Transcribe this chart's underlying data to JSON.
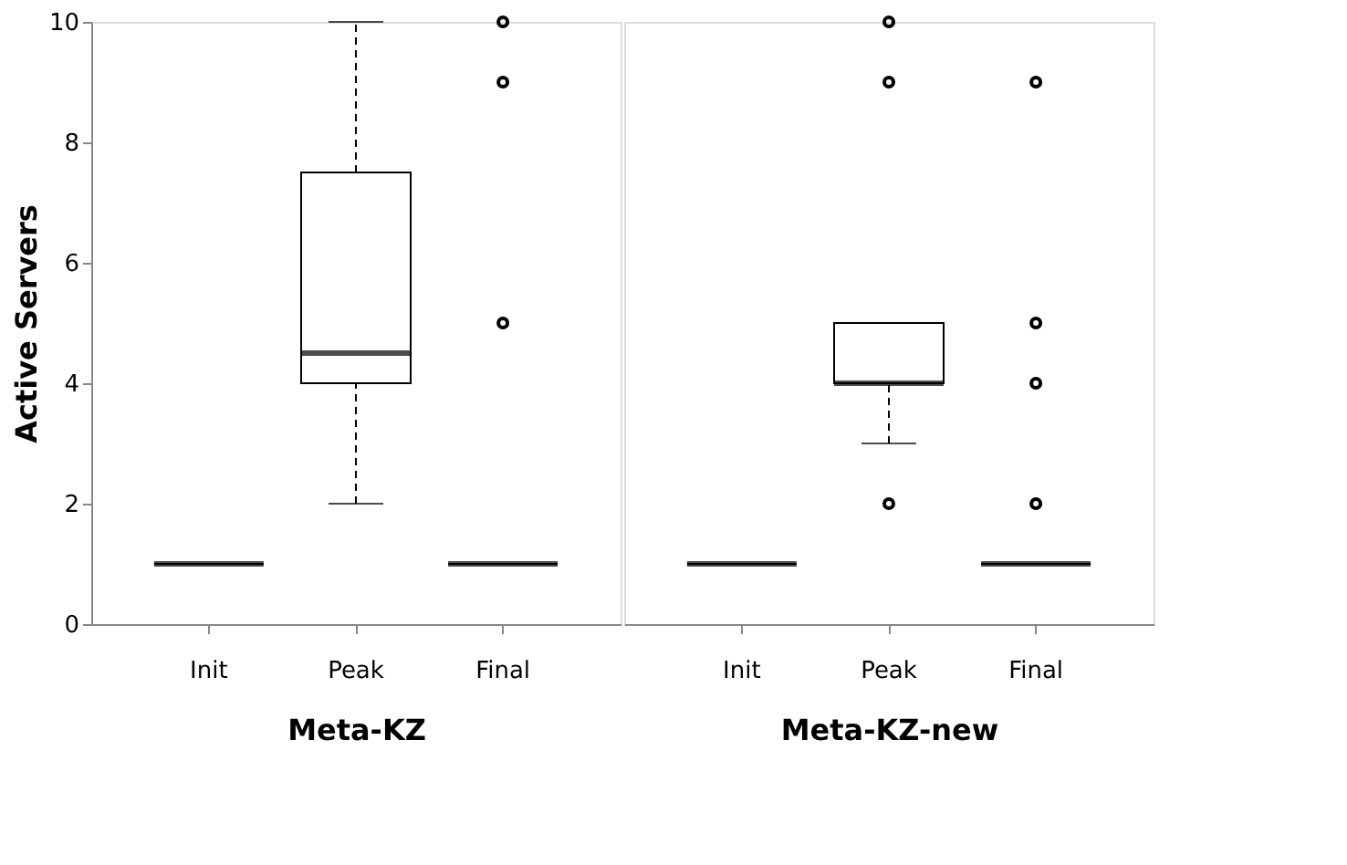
{
  "chart_data": [
    {
      "type": "box",
      "categories": [
        "Init",
        "Peak",
        "Final"
      ],
      "xlabel": "Meta-KZ",
      "ylabel": "Active Servers",
      "ylim": [
        0,
        10
      ],
      "yticks": [
        0,
        2,
        4,
        6,
        8,
        10
      ],
      "grid": false,
      "boxes": [
        {
          "low": 1,
          "q1": 1,
          "median": 1,
          "q3": 1,
          "high": 1
        },
        {
          "low": 2,
          "q1": 4,
          "median": 4.5,
          "q3": 7.5,
          "high": 10
        },
        {
          "low": 1,
          "q1": 1,
          "median": 1,
          "q3": 1,
          "high": 1,
          "outliers": [
            5,
            9,
            10
          ]
        }
      ]
    },
    {
      "type": "box",
      "categories": [
        "Init",
        "Peak",
        "Final"
      ],
      "xlabel": "Meta-KZ-new",
      "ylim": [
        0,
        10
      ],
      "tick_labels": "x",
      "grid": false,
      "boxes": [
        {
          "low": 1,
          "q1": 1,
          "median": 1,
          "q3": 1,
          "high": 1
        },
        {
          "low": 3,
          "q1": 4,
          "median": 4,
          "q3": 5,
          "high": 5,
          "outliers": [
            2,
            9,
            10
          ]
        },
        {
          "low": 1,
          "q1": 1,
          "median": 1,
          "q3": 1,
          "high": 1,
          "outliers": [
            2,
            4,
            5,
            9
          ]
        }
      ]
    }
  ]
}
